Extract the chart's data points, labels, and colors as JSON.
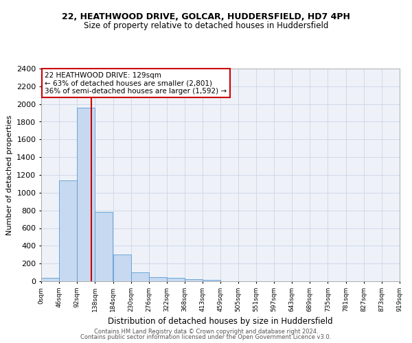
{
  "title": "22, HEATHWOOD DRIVE, GOLCAR, HUDDERSFIELD, HD7 4PH",
  "subtitle": "Size of property relative to detached houses in Huddersfield",
  "xlabel": "Distribution of detached houses by size in Huddersfield",
  "ylabel": "Number of detached properties",
  "bin_edges": [
    0,
    46,
    92,
    138,
    184,
    230,
    276,
    322,
    368,
    413,
    459,
    505,
    551,
    597,
    643,
    689,
    735,
    781,
    827,
    873,
    919
  ],
  "bar_heights": [
    40,
    1140,
    1960,
    780,
    300,
    100,
    48,
    40,
    25,
    18,
    0,
    0,
    0,
    0,
    0,
    0,
    0,
    0,
    0,
    0
  ],
  "bar_color": "#c6d9f0",
  "bar_edge_color": "#5b9bd5",
  "property_sqm": 129,
  "ylim": [
    0,
    2400
  ],
  "yticks": [
    0,
    200,
    400,
    600,
    800,
    1000,
    1200,
    1400,
    1600,
    1800,
    2000,
    2200,
    2400
  ],
  "annotation_text_line1": "22 HEATHWOOD DRIVE: 129sqm",
  "annotation_text_line2": "← 63% of detached houses are smaller (2,801)",
  "annotation_text_line3": "36% of semi-detached houses are larger (1,592) →",
  "footer_line1": "Contains HM Land Registry data © Crown copyright and database right 2024.",
  "footer_line2": "Contains public sector information licensed under the Open Government Licence v3.0.",
  "red_line_color": "#cc0000",
  "annotation_box_color": "#cc0000",
  "grid_color": "#d0d8e8",
  "bg_color": "#eef2f8",
  "title_fontsize": 9,
  "subtitle_fontsize": 8.5,
  "ylabel_fontsize": 8,
  "xlabel_fontsize": 8.5,
  "ytick_fontsize": 8,
  "xtick_fontsize": 6.5,
  "ann_fontsize": 7.5,
  "footer_fontsize": 6
}
